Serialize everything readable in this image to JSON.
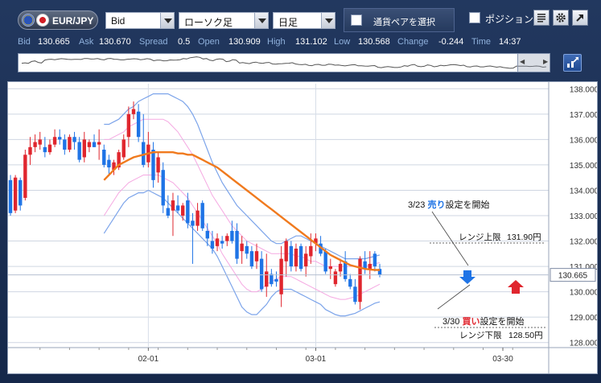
{
  "toolbar": {
    "pair": "EUR/JPY",
    "price_type": "Bid",
    "chart_style": "ローソク足",
    "timeframe": "日足",
    "pair_select_label": "通貨ペアを選択",
    "position_label": "ポジション"
  },
  "icons": {
    "pair_flags": [
      "eu-flag-icon",
      "jp-flag-icon"
    ],
    "menu": "list-menu-icon",
    "settings": "gear-icon",
    "popout": "popout-arrow-icon",
    "chart_mode": "chart-mode-icon"
  },
  "quote": {
    "bid_label": "Bid",
    "bid": "130.665",
    "ask_label": "Ask",
    "ask": "130.670",
    "spread_label": "Spread",
    "spread": "0.5",
    "open_label": "Open",
    "open": "130.909",
    "high_label": "High",
    "high": "131.102",
    "low_label": "Low",
    "low": "130.568",
    "change_label": "Change",
    "change": "-0.244",
    "time_label": "Time",
    "time": "14:37"
  },
  "colors": {
    "up": "#e0262e",
    "down": "#1f74e6",
    "ma": "#f07a1e",
    "band_outer": "#7ca4ea",
    "band_inner": "#f5a9e2",
    "accent": "#1b2f52"
  },
  "chart_data": {
    "type": "candlestick",
    "y_ticks": [
      "138.000",
      "137.000",
      "136.000",
      "135.000",
      "134.000",
      "133.000",
      "132.000",
      "131.000",
      "130.000",
      "129.000",
      "128.000"
    ],
    "ylim": [
      127.8,
      138.2
    ],
    "x_ticks": [
      {
        "label": "02-01",
        "index": 28
      },
      {
        "label": "03-01",
        "index": 62
      },
      {
        "label": "03-30",
        "index": 100
      }
    ],
    "current_price": "130.665",
    "candles": [
      {
        "o": 134.4,
        "h": 134.6,
        "l": 133.0,
        "c": 133.1
      },
      {
        "o": 133.2,
        "h": 134.6,
        "l": 133.1,
        "c": 134.5
      },
      {
        "o": 134.4,
        "h": 134.5,
        "l": 133.2,
        "c": 133.4
      },
      {
        "o": 133.7,
        "h": 135.6,
        "l": 133.6,
        "c": 135.4
      },
      {
        "o": 135.4,
        "h": 136.1,
        "l": 135.0,
        "c": 135.7
      },
      {
        "o": 135.7,
        "h": 136.2,
        "l": 135.5,
        "c": 135.9
      },
      {
        "o": 135.8,
        "h": 136.3,
        "l": 135.6,
        "c": 136.0
      },
      {
        "o": 135.7,
        "h": 136.1,
        "l": 135.3,
        "c": 135.5
      },
      {
        "o": 135.5,
        "h": 136.0,
        "l": 135.4,
        "c": 135.8
      },
      {
        "o": 135.8,
        "h": 136.4,
        "l": 135.7,
        "c": 136.1
      },
      {
        "o": 136.1,
        "h": 136.4,
        "l": 135.8,
        "c": 136.0
      },
      {
        "o": 136.0,
        "h": 136.2,
        "l": 135.4,
        "c": 135.6
      },
      {
        "o": 135.6,
        "h": 136.2,
        "l": 135.5,
        "c": 136.1
      },
      {
        "o": 136.1,
        "h": 136.3,
        "l": 135.6,
        "c": 135.9
      },
      {
        "o": 135.9,
        "h": 136.1,
        "l": 135.1,
        "c": 135.2
      },
      {
        "o": 135.3,
        "h": 136.3,
        "l": 135.1,
        "c": 136.0
      },
      {
        "o": 135.7,
        "h": 136.0,
        "l": 135.5,
        "c": 135.9
      },
      {
        "o": 135.9,
        "h": 136.2,
        "l": 135.7,
        "c": 135.7
      },
      {
        "o": 135.8,
        "h": 136.4,
        "l": 135.2,
        "c": 135.9
      },
      {
        "o": 135.6,
        "h": 135.8,
        "l": 134.9,
        "c": 135.0
      },
      {
        "o": 135.2,
        "h": 135.4,
        "l": 134.6,
        "c": 134.9
      },
      {
        "o": 134.8,
        "h": 135.2,
        "l": 134.6,
        "c": 135.1
      },
      {
        "o": 134.9,
        "h": 135.6,
        "l": 134.8,
        "c": 135.5
      },
      {
        "o": 135.3,
        "h": 136.2,
        "l": 135.2,
        "c": 136.0
      },
      {
        "o": 136.1,
        "h": 137.3,
        "l": 135.7,
        "c": 137.0
      },
      {
        "o": 137.0,
        "h": 137.5,
        "l": 136.8,
        "c": 137.2
      },
      {
        "o": 137.1,
        "h": 137.4,
        "l": 135.9,
        "c": 136.1
      },
      {
        "o": 135.9,
        "h": 137.0,
        "l": 134.9,
        "c": 135.0
      },
      {
        "o": 135.1,
        "h": 136.3,
        "l": 134.9,
        "c": 135.8
      },
      {
        "o": 135.6,
        "h": 135.9,
        "l": 134.1,
        "c": 134.4
      },
      {
        "o": 134.7,
        "h": 135.5,
        "l": 134.3,
        "c": 135.3
      },
      {
        "o": 134.8,
        "h": 135.1,
        "l": 133.1,
        "c": 133.4
      },
      {
        "o": 133.3,
        "h": 133.8,
        "l": 132.9,
        "c": 133.0
      },
      {
        "o": 133.2,
        "h": 133.9,
        "l": 132.2,
        "c": 133.6
      },
      {
        "o": 133.4,
        "h": 133.8,
        "l": 133.1,
        "c": 133.2
      },
      {
        "o": 133.0,
        "h": 133.5,
        "l": 132.8,
        "c": 133.4
      },
      {
        "o": 133.6,
        "h": 133.9,
        "l": 132.5,
        "c": 132.7
      },
      {
        "o": 132.8,
        "h": 133.1,
        "l": 131.1,
        "c": 132.6
      },
      {
        "o": 132.6,
        "h": 133.5,
        "l": 132.4,
        "c": 133.2
      },
      {
        "o": 133.5,
        "h": 133.6,
        "l": 132.4,
        "c": 132.5
      },
      {
        "o": 132.4,
        "h": 132.7,
        "l": 131.8,
        "c": 132.1
      },
      {
        "o": 132.0,
        "h": 132.4,
        "l": 131.5,
        "c": 131.7
      },
      {
        "o": 131.8,
        "h": 132.3,
        "l": 131.6,
        "c": 132.1
      },
      {
        "o": 132.0,
        "h": 132.2,
        "l": 131.7,
        "c": 131.9
      },
      {
        "o": 132.0,
        "h": 132.3,
        "l": 131.8,
        "c": 132.2
      },
      {
        "o": 132.4,
        "h": 132.8,
        "l": 131.9,
        "c": 132.0
      },
      {
        "o": 132.4,
        "h": 132.7,
        "l": 131.1,
        "c": 131.3
      },
      {
        "o": 131.6,
        "h": 132.2,
        "l": 131.1,
        "c": 131.9
      },
      {
        "o": 131.8,
        "h": 132.0,
        "l": 131.3,
        "c": 131.5
      },
      {
        "o": 131.6,
        "h": 131.8,
        "l": 130.9,
        "c": 131.0
      },
      {
        "o": 131.2,
        "h": 131.9,
        "l": 130.9,
        "c": 131.6
      },
      {
        "o": 131.3,
        "h": 131.6,
        "l": 130.0,
        "c": 130.1
      },
      {
        "o": 130.2,
        "h": 131.5,
        "l": 129.8,
        "c": 130.8
      },
      {
        "o": 130.7,
        "h": 130.9,
        "l": 130.2,
        "c": 130.3
      },
      {
        "o": 130.5,
        "h": 130.8,
        "l": 130.2,
        "c": 130.4
      },
      {
        "o": 129.9,
        "h": 131.8,
        "l": 129.4,
        "c": 131.3
      },
      {
        "o": 131.2,
        "h": 132.1,
        "l": 130.6,
        "c": 132.0
      },
      {
        "o": 131.8,
        "h": 132.0,
        "l": 130.8,
        "c": 131.0
      },
      {
        "o": 131.0,
        "h": 131.9,
        "l": 130.8,
        "c": 131.7
      },
      {
        "o": 131.8,
        "h": 131.9,
        "l": 130.8,
        "c": 130.9
      },
      {
        "o": 131.0,
        "h": 131.8,
        "l": 130.6,
        "c": 131.5
      },
      {
        "o": 131.4,
        "h": 132.3,
        "l": 131.1,
        "c": 131.8
      },
      {
        "o": 131.9,
        "h": 132.3,
        "l": 131.6,
        "c": 132.1
      },
      {
        "o": 131.9,
        "h": 132.2,
        "l": 131.4,
        "c": 131.5
      },
      {
        "o": 131.6,
        "h": 131.7,
        "l": 130.7,
        "c": 130.8
      },
      {
        "o": 130.9,
        "h": 131.3,
        "l": 130.5,
        "c": 131.0
      },
      {
        "o": 130.3,
        "h": 130.9,
        "l": 130.2,
        "c": 130.8
      },
      {
        "o": 130.8,
        "h": 131.3,
        "l": 130.6,
        "c": 131.1
      },
      {
        "o": 131.2,
        "h": 131.6,
        "l": 130.4,
        "c": 130.5
      },
      {
        "o": 130.5,
        "h": 130.7,
        "l": 130.1,
        "c": 130.2
      },
      {
        "o": 130.2,
        "h": 130.5,
        "l": 129.5,
        "c": 129.6
      },
      {
        "o": 129.6,
        "h": 131.4,
        "l": 129.3,
        "c": 131.3
      },
      {
        "o": 131.2,
        "h": 131.6,
        "l": 130.7,
        "c": 130.9
      },
      {
        "o": 130.9,
        "h": 131.6,
        "l": 130.5,
        "c": 131.1
      },
      {
        "o": 131.5,
        "h": 131.6,
        "l": 130.8,
        "c": 131.0
      },
      {
        "o": 130.9,
        "h": 131.1,
        "l": 130.57,
        "c": 130.665
      }
    ],
    "ma": [
      134.4,
      134.6,
      134.8,
      135.0,
      135.1,
      135.2,
      135.3,
      135.35,
      135.4,
      135.45,
      135.5,
      135.5,
      135.5,
      135.5,
      135.5,
      135.45,
      135.45,
      135.4,
      135.4,
      135.3,
      135.2,
      135.1,
      135.0,
      134.9,
      134.75,
      134.6,
      134.45,
      134.3,
      134.15,
      134.0,
      133.85,
      133.7,
      133.55,
      133.4,
      133.25,
      133.1,
      132.95,
      132.8,
      132.65,
      132.5,
      132.35,
      132.2,
      132.05,
      131.9,
      131.75,
      131.6,
      131.45,
      131.35,
      131.25,
      131.15,
      131.05,
      131.0,
      130.95,
      130.9,
      130.88,
      130.86,
      130.86
    ],
    "band_upper": [
      136.6,
      136.6,
      136.7,
      136.8,
      137.0,
      137.2,
      137.3,
      137.5,
      137.6,
      137.7,
      137.8,
      137.8,
      137.8,
      137.8,
      137.7,
      137.6,
      137.5,
      137.3,
      137.0,
      136.6,
      136.1,
      135.6,
      135.1,
      134.7,
      134.3,
      134.0,
      133.7,
      133.4,
      133.2,
      133.0,
      132.8,
      132.6,
      132.4,
      132.2,
      132.0,
      131.9,
      131.9,
      132.0,
      132.1,
      132.2,
      132.2,
      132.1,
      132.0,
      131.9,
      131.8,
      131.7,
      131.6,
      131.5,
      131.4,
      131.3,
      131.3,
      131.3,
      131.3,
      131.3,
      131.35,
      131.4,
      131.45
    ],
    "band_lower": [
      132.3,
      132.6,
      132.9,
      133.2,
      133.5,
      133.7,
      133.8,
      133.9,
      133.9,
      134.0,
      133.9,
      133.8,
      133.7,
      133.5,
      133.3,
      133.1,
      132.9,
      132.7,
      132.5,
      132.3,
      132.1,
      131.9,
      131.7,
      131.4,
      131.0,
      130.6,
      130.2,
      129.8,
      129.4,
      129.2,
      129.1,
      129.1,
      129.3,
      129.5,
      129.8,
      130.0,
      130.1,
      130.1,
      130.1,
      130.0,
      129.9,
      129.8,
      129.7,
      129.6,
      129.5,
      129.3,
      129.2,
      129.1,
      129.05,
      129.05,
      129.1,
      129.15,
      129.25,
      129.35,
      129.45,
      129.55,
      129.6
    ],
    "band_inner_upper": [
      136.0,
      136.0,
      136.1,
      136.2,
      136.3,
      136.5,
      136.6,
      136.7,
      136.8,
      136.8,
      136.8,
      136.8,
      136.8,
      136.7,
      136.5,
      136.3,
      136.0,
      135.7,
      135.4,
      135.0,
      134.6,
      134.2,
      133.8,
      133.5,
      133.2,
      132.9,
      132.6,
      132.4,
      132.2,
      132.0,
      131.9,
      131.8,
      131.7,
      131.6,
      131.5,
      131.5,
      131.5,
      131.5,
      131.5,
      131.4,
      131.4,
      131.3,
      131.2,
      131.2,
      131.1,
      131.0,
      131.0,
      131.0,
      131.0,
      131.0,
      131.0,
      131.0,
      131.0,
      131.0,
      131.05,
      131.1,
      131.15
    ],
    "band_inner_lower": [
      133.0,
      133.3,
      133.6,
      133.9,
      134.1,
      134.3,
      134.4,
      134.5,
      134.6,
      134.6,
      134.6,
      134.6,
      134.5,
      134.4,
      134.3,
      134.1,
      133.9,
      133.7,
      133.4,
      133.1,
      132.8,
      132.5,
      132.2,
      131.9,
      131.5,
      131.2,
      130.9,
      130.6,
      130.3,
      130.1,
      130.0,
      130.0,
      130.1,
      130.3,
      130.4,
      130.5,
      130.6,
      130.6,
      130.6,
      130.5,
      130.4,
      130.3,
      130.2,
      130.1,
      130.0,
      129.9,
      129.8,
      129.75,
      129.7,
      129.7,
      129.75,
      129.8,
      129.9,
      130.0,
      130.1,
      130.2,
      130.3
    ],
    "annotations": {
      "sell_date": "3/23",
      "sell_word": "売り",
      "sell_rest": "設定を開始",
      "buy_date": "3/30",
      "buy_word": "買い",
      "buy_rest": "設定を開始",
      "range_upper_label": "レンジ上限",
      "range_upper_value": "131.90円",
      "range_lower_label": "レンジ下限",
      "range_lower_value": "128.50円"
    }
  }
}
